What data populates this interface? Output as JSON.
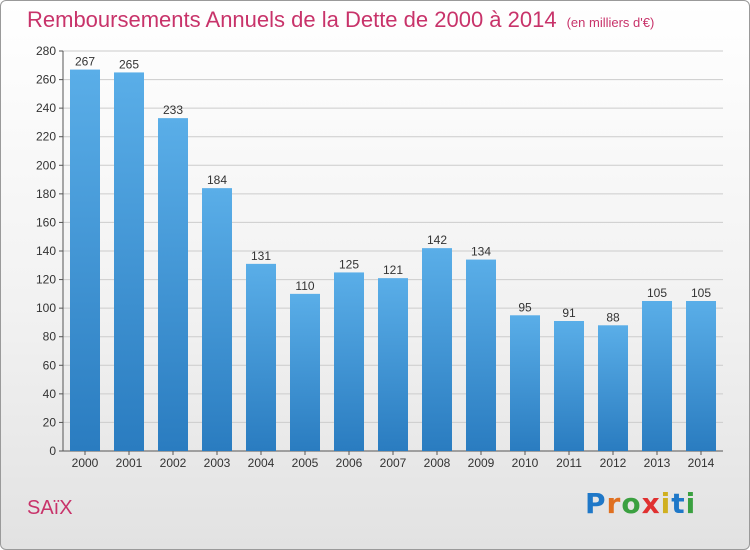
{
  "header": {
    "title": "Remboursements Annuels de la Dette de 2000 à 2014",
    "unit": "(en milliers d'€)"
  },
  "footer": {
    "commune": "SAïX",
    "brand_letters": [
      "P",
      "r",
      "o",
      "x",
      "i",
      "t",
      "i"
    ]
  },
  "colors": {
    "title": "#c8336a",
    "bar_top": "#5aaee8",
    "bar_bottom": "#2a7cc0",
    "logo": [
      "#1f78c8",
      "#e07020",
      "#3aa040",
      "#e03030",
      "#d0b020",
      "#1f78c8",
      "#3aa040"
    ]
  },
  "chart_data": {
    "type": "bar",
    "title": "Remboursements Annuels de la Dette de 2000 à 2014",
    "xlabel": "",
    "ylabel": "",
    "categories": [
      "2000",
      "2001",
      "2002",
      "2003",
      "2004",
      "2005",
      "2006",
      "2007",
      "2008",
      "2009",
      "2010",
      "2011",
      "2012",
      "2013",
      "2014"
    ],
    "values": [
      267,
      265,
      233,
      184,
      131,
      110,
      125,
      121,
      142,
      134,
      95,
      91,
      88,
      105,
      105
    ],
    "ylim": [
      0,
      280
    ],
    "yticks": [
      "0",
      "20",
      "40",
      "60",
      "80",
      "100",
      "120",
      "140",
      "160",
      "180",
      "200",
      "220",
      "240",
      "260",
      "280"
    ],
    "grid": true,
    "legend": "none"
  }
}
